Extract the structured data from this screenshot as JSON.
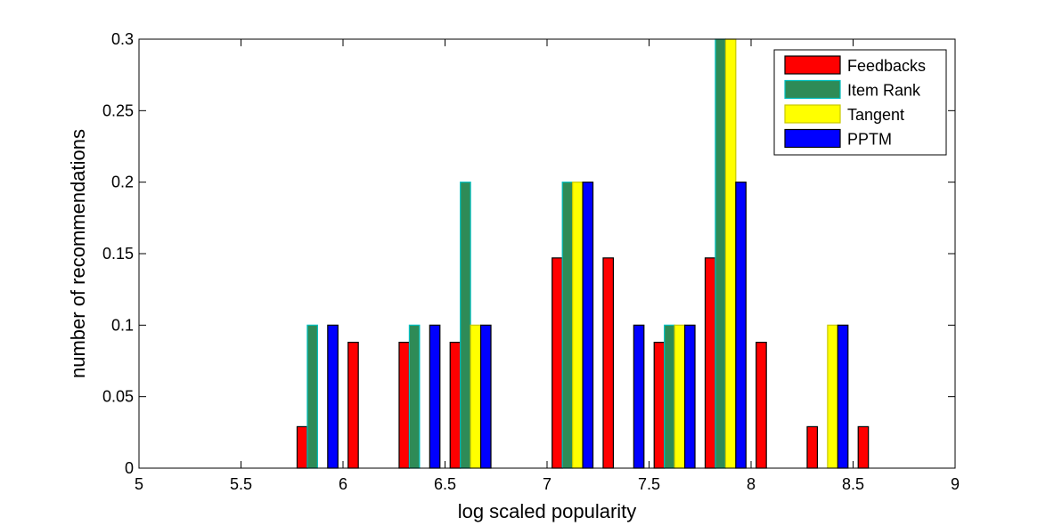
{
  "chart_data": {
    "type": "bar",
    "xlabel": "log scaled popularity",
    "ylabel": "number of recommendations",
    "xlim": [
      5,
      9
    ],
    "ylim": [
      0,
      0.3
    ],
    "x_ticks": [
      5,
      5.5,
      6,
      6.5,
      7,
      7.5,
      8,
      8.5,
      9
    ],
    "x_tick_labels": [
      "5",
      "5.5",
      "6",
      "6.5",
      "7",
      "7.5",
      "8",
      "8.5",
      "9"
    ],
    "y_ticks": [
      0,
      0.05,
      0.1,
      0.15,
      0.2,
      0.25,
      0.3
    ],
    "y_tick_labels": [
      "0",
      "0.05",
      "0.1",
      "0.15",
      "0.2",
      "0.25",
      "0.3"
    ],
    "bin_centers": [
      5.125,
      5.375,
      5.625,
      5.875,
      6.125,
      6.375,
      6.625,
      6.875,
      7.125,
      7.375,
      7.625,
      7.875,
      8.125,
      8.375,
      8.625,
      8.875
    ],
    "series": [
      {
        "name": "Feedbacks",
        "color": "#ff0000",
        "edge": "#000000",
        "values": [
          0,
          0,
          0,
          0.029,
          0.088,
          0.088,
          0.088,
          0,
          0.147,
          0.147,
          0.088,
          0.147,
          0.088,
          0.029,
          0.029,
          0
        ]
      },
      {
        "name": "Item Rank",
        "color": "#2e8b57",
        "edge": "#00bfbf",
        "values": [
          0,
          0,
          0,
          0.1,
          0,
          0.1,
          0.2,
          0,
          0.2,
          0,
          0.1,
          0.3,
          0,
          0,
          0,
          0
        ]
      },
      {
        "name": "Tangent",
        "color": "#ffff00",
        "edge": "#c8c800",
        "values": [
          0,
          0,
          0,
          0,
          0,
          0,
          0.1,
          0,
          0.2,
          0,
          0.1,
          0.3,
          0,
          0.1,
          0,
          0
        ]
      },
      {
        "name": "PPTM",
        "color": "#0000ff",
        "edge": "#000000",
        "values": [
          0,
          0,
          0,
          0.1,
          0,
          0.1,
          0.1,
          0,
          0.2,
          0.1,
          0.1,
          0.2,
          0,
          0.1,
          0,
          0
        ]
      }
    ],
    "legend_position": "top-right",
    "grid": false
  }
}
